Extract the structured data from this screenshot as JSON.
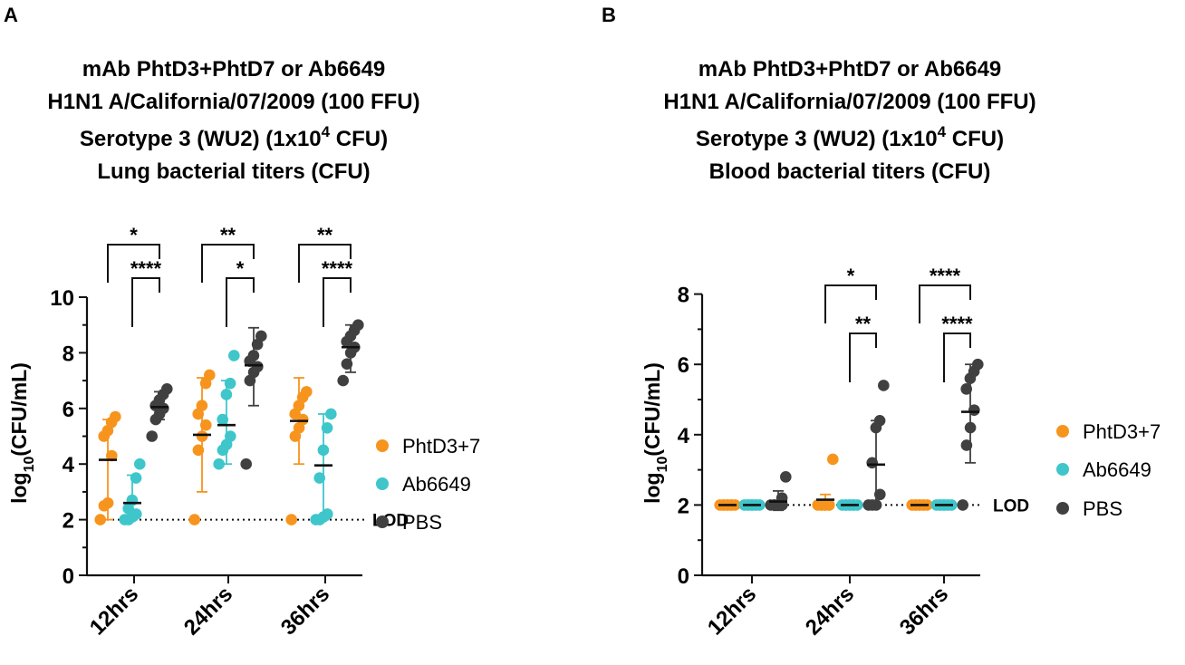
{
  "chart_data": [
    {
      "type": "scatter",
      "panel": "A",
      "title": [
        "mAb PhtD3+PhtD7 or Ab6649",
        "H1N1 A/California/07/2009 (100 FFU)",
        "Serotype 3 (WU2) (1x10",
        "4",
        " CFU)",
        "Lung bacterial titers (CFU)"
      ],
      "ylabel": {
        "base": "log",
        "sub": "10",
        "rest": "(CFU/mL)"
      },
      "ylim": [
        0,
        10
      ],
      "yticks": [
        0,
        2,
        4,
        6,
        8,
        10
      ],
      "categories": [
        "12hrs",
        "24hrs",
        "36hrs"
      ],
      "lod": {
        "value": 2,
        "label": "LOD"
      },
      "series": [
        {
          "name": "PhtD3+7",
          "color": "#F7941D",
          "groups": [
            {
              "mean": 4.15,
              "sd": [
                2.0,
                5.6
              ],
              "points": [
                2.0,
                2.5,
                2.6,
                4.3,
                5.0,
                5.2,
                5.5,
                5.7
              ]
            },
            {
              "mean": 5.05,
              "sd": [
                3.0,
                7.1
              ],
              "points": [
                2.0,
                4.5,
                5.0,
                5.4,
                5.8,
                6.1,
                6.9,
                7.2
              ]
            },
            {
              "mean": 5.55,
              "sd": [
                4.0,
                7.1
              ],
              "points": [
                2.0,
                5.0,
                5.3,
                5.6,
                5.8,
                6.1,
                6.4,
                6.6
              ]
            }
          ]
        },
        {
          "name": "Ab6649",
          "color": "#3EC6CB",
          "groups": [
            {
              "mean": 2.6,
              "sd": [
                2.0,
                3.6
              ],
              "points": [
                2.0,
                2.0,
                2.1,
                2.2,
                2.4,
                2.7,
                3.5,
                4.0
              ]
            },
            {
              "mean": 5.4,
              "sd": [
                4.0,
                7.0
              ],
              "points": [
                4.0,
                4.5,
                4.7,
                5.0,
                5.6,
                6.5,
                6.9,
                7.9
              ]
            },
            {
              "mean": 3.95,
              "sd": [
                2.0,
                5.8
              ],
              "points": [
                2.0,
                2.0,
                2.1,
                2.2,
                3.5,
                4.5,
                5.3,
                5.8
              ]
            }
          ]
        },
        {
          "name": "PBS",
          "color": "#404040",
          "groups": [
            {
              "mean": 6.05,
              "sd": [
                5.6,
                6.6
              ],
              "points": [
                5.0,
                5.6,
                5.8,
                6.0,
                6.1,
                6.3,
                6.5,
                6.7
              ]
            },
            {
              "mean": 7.55,
              "sd": [
                6.1,
                8.9
              ],
              "points": [
                4.0,
                7.0,
                7.3,
                7.5,
                7.7,
                7.9,
                8.3,
                8.6
              ]
            },
            {
              "mean": 8.2,
              "sd": [
                7.3,
                9.0
              ],
              "points": [
                7.0,
                7.6,
                8.0,
                8.2,
                8.4,
                8.6,
                8.8,
                9.0
              ]
            }
          ]
        }
      ],
      "comparisons": [
        {
          "cat": 0,
          "from": 0,
          "to": 2,
          "label": "*",
          "level": 1
        },
        {
          "cat": 0,
          "from": 1,
          "to": 2,
          "label": "****",
          "level": 0
        },
        {
          "cat": 1,
          "from": 0,
          "to": 2,
          "label": "**",
          "level": 1
        },
        {
          "cat": 1,
          "from": 1,
          "to": 2,
          "label": "*",
          "level": 0
        },
        {
          "cat": 2,
          "from": 0,
          "to": 2,
          "label": "**",
          "level": 1
        },
        {
          "cat": 2,
          "from": 1,
          "to": 2,
          "label": "****",
          "level": 0
        }
      ]
    },
    {
      "type": "scatter",
      "panel": "B",
      "title": [
        "mAb PhtD3+PhtD7 or Ab6649",
        "H1N1 A/California/07/2009 (100 FFU)",
        "Serotype 3 (WU2) (1x10",
        "4",
        " CFU)",
        "Blood bacterial titers (CFU)"
      ],
      "ylabel": {
        "base": "log",
        "sub": "10",
        "rest": "(CFU/mL)"
      },
      "ylim": [
        0,
        8
      ],
      "yticks": [
        0,
        2,
        4,
        6,
        8
      ],
      "categories": [
        "12hrs",
        "24hrs",
        "36hrs"
      ],
      "lod": {
        "value": 2,
        "label": "LOD"
      },
      "series": [
        {
          "name": "PhtD3+7",
          "color": "#F7941D",
          "groups": [
            {
              "mean": 2.0,
              "sd": [
                2.0,
                2.0
              ],
              "points": [
                2.0,
                2.0,
                2.0,
                2.0,
                2.0,
                2.0,
                2.0,
                2.0
              ]
            },
            {
              "mean": 2.15,
              "sd": [
                2.0,
                2.3
              ],
              "points": [
                2.0,
                2.0,
                2.0,
                2.0,
                2.0,
                2.0,
                2.0,
                3.3
              ]
            },
            {
              "mean": 2.0,
              "sd": [
                2.0,
                2.0
              ],
              "points": [
                2.0,
                2.0,
                2.0,
                2.0,
                2.0,
                2.0,
                2.0,
                2.0
              ]
            }
          ]
        },
        {
          "name": "Ab6649",
          "color": "#3EC6CB",
          "groups": [
            {
              "mean": 2.0,
              "sd": [
                2.0,
                2.0
              ],
              "points": [
                2.0,
                2.0,
                2.0,
                2.0,
                2.0,
                2.0,
                2.0,
                2.0
              ]
            },
            {
              "mean": 2.0,
              "sd": [
                2.0,
                2.0
              ],
              "points": [
                2.0,
                2.0,
                2.0,
                2.0,
                2.0,
                2.0,
                2.0,
                2.0
              ]
            },
            {
              "mean": 2.0,
              "sd": [
                2.0,
                2.0
              ],
              "points": [
                2.0,
                2.0,
                2.0,
                2.0,
                2.0,
                2.0,
                2.0,
                2.0
              ]
            }
          ]
        },
        {
          "name": "PBS",
          "color": "#404040",
          "groups": [
            {
              "mean": 2.1,
              "sd": [
                1.85,
                2.4
              ],
              "points": [
                2.0,
                2.0,
                2.0,
                2.0,
                2.0,
                2.0,
                2.2,
                2.8
              ]
            },
            {
              "mean": 3.15,
              "sd": [
                2.0,
                4.4
              ],
              "points": [
                2.0,
                2.0,
                2.0,
                2.3,
                3.2,
                4.2,
                4.4,
                5.4
              ]
            },
            {
              "mean": 4.65,
              "sd": [
                3.2,
                6.0
              ],
              "points": [
                2.0,
                3.7,
                4.2,
                4.7,
                5.3,
                5.6,
                5.8,
                6.0
              ]
            }
          ]
        }
      ],
      "comparisons": [
        {
          "cat": 1,
          "from": 0,
          "to": 2,
          "label": "*",
          "level": 1
        },
        {
          "cat": 1,
          "from": 1,
          "to": 2,
          "label": "**",
          "level": 0
        },
        {
          "cat": 2,
          "from": 0,
          "to": 2,
          "label": "****",
          "level": 1
        },
        {
          "cat": 2,
          "from": 1,
          "to": 2,
          "label": "****",
          "level": 0
        }
      ]
    }
  ]
}
